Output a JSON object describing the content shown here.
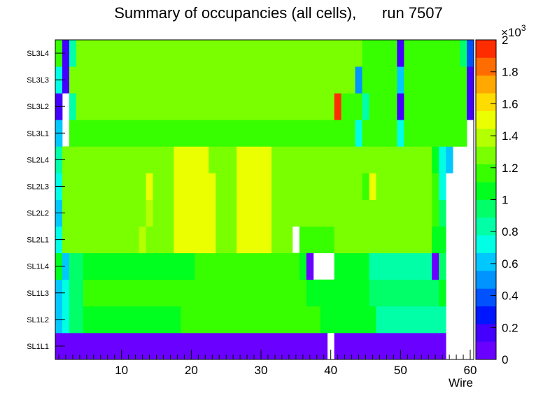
{
  "chart_data": {
    "type": "heatmap",
    "title": "Summary of occupancies (all cells),      run 7507",
    "xlabel": "Wire",
    "ylabel": "",
    "xlim": [
      0.5,
      60.5
    ],
    "x_ticks": [
      10,
      20,
      30,
      40,
      50,
      60
    ],
    "y_labels": [
      "SL1L1",
      "SL1L2",
      "SL1L3",
      "SL1L4",
      "SL2L1",
      "SL2L2",
      "SL2L3",
      "SL2L4",
      "SL3L1",
      "SL3L2",
      "SL3L3",
      "SL3L4"
    ],
    "zlim": [
      0,
      2000
    ],
    "z_exponent_label": "×10",
    "z_exponent": "3",
    "z_ticks": [
      "0",
      "0.2",
      "0.4",
      "0.6",
      "0.8",
      "1",
      "1.2",
      "1.4",
      "1.6",
      "1.8",
      "2"
    ],
    "palette": [
      "#6a00ff",
      "#4400ff",
      "#0016ff",
      "#0052ff",
      "#0094ff",
      "#00c8ff",
      "#00ffe4",
      "#00ffa6",
      "#00ff68",
      "#00ff1e",
      "#38ff00",
      "#7aff00",
      "#b4ff00",
      "#ecff00",
      "#ffdc00",
      "#ffa800",
      "#ff6c00",
      "#ff2c00"
    ],
    "rows": [
      {
        "layer": "SL1L1",
        "segments": [
          [
            1,
            39,
            0
          ],
          [
            40,
            40,
            null
          ],
          [
            41,
            56,
            0
          ],
          [
            57,
            60,
            null
          ]
        ]
      },
      {
        "layer": "SL1L2",
        "segments": [
          [
            1,
            1,
            600
          ],
          [
            2,
            2,
            720
          ],
          [
            3,
            4,
            950
          ],
          [
            5,
            18,
            1080
          ],
          [
            19,
            38,
            1120
          ],
          [
            39,
            46,
            1040
          ],
          [
            47,
            48,
            860
          ],
          [
            49,
            56,
            880
          ],
          [
            57,
            60,
            null
          ]
        ]
      },
      {
        "layer": "SL1L3",
        "segments": [
          [
            1,
            1,
            560
          ],
          [
            2,
            2,
            680
          ],
          [
            3,
            4,
            940
          ],
          [
            5,
            20,
            1150
          ],
          [
            21,
            36,
            1180
          ],
          [
            37,
            45,
            1080
          ],
          [
            46,
            55,
            900
          ],
          [
            56,
            56,
            1100
          ],
          [
            57,
            60,
            null
          ]
        ]
      },
      {
        "layer": "SL1L4",
        "segments": [
          [
            1,
            1,
            1000
          ],
          [
            2,
            2,
            580
          ],
          [
            3,
            4,
            900
          ],
          [
            5,
            20,
            1080
          ],
          [
            21,
            35,
            1120
          ],
          [
            36,
            36,
            1020
          ],
          [
            37,
            37,
            0
          ],
          [
            38,
            40,
            null
          ],
          [
            41,
            45,
            1000
          ],
          [
            46,
            54,
            880
          ],
          [
            55,
            55,
            0
          ],
          [
            56,
            56,
            940
          ],
          [
            57,
            60,
            null
          ]
        ]
      },
      {
        "layer": "SL2L1",
        "segments": [
          [
            1,
            1,
            760
          ],
          [
            2,
            8,
            1240
          ],
          [
            9,
            12,
            1300
          ],
          [
            13,
            13,
            1420
          ],
          [
            14,
            17,
            1300
          ],
          [
            18,
            23,
            1470
          ],
          [
            24,
            26,
            1300
          ],
          [
            27,
            31,
            1470
          ],
          [
            32,
            34,
            1260
          ],
          [
            35,
            35,
            null
          ],
          [
            36,
            40,
            1180
          ],
          [
            41,
            54,
            1300
          ],
          [
            55,
            55,
            1080
          ],
          [
            56,
            56,
            1000
          ],
          [
            57,
            60,
            null
          ]
        ]
      },
      {
        "layer": "SL2L2",
        "segments": [
          [
            1,
            1,
            620
          ],
          [
            2,
            8,
            1270
          ],
          [
            9,
            13,
            1310
          ],
          [
            14,
            14,
            1440
          ],
          [
            15,
            17,
            1300
          ],
          [
            18,
            23,
            1470
          ],
          [
            24,
            26,
            1300
          ],
          [
            27,
            31,
            1470
          ],
          [
            32,
            42,
            1250
          ],
          [
            43,
            54,
            1310
          ],
          [
            55,
            55,
            1150
          ],
          [
            56,
            56,
            900
          ],
          [
            57,
            60,
            null
          ]
        ]
      },
      {
        "layer": "SL2L3",
        "segments": [
          [
            1,
            1,
            720
          ],
          [
            2,
            11,
            1300
          ],
          [
            12,
            13,
            1330
          ],
          [
            14,
            14,
            1450
          ],
          [
            15,
            17,
            1320
          ],
          [
            18,
            23,
            1480
          ],
          [
            24,
            26,
            1320
          ],
          [
            27,
            31,
            1480
          ],
          [
            32,
            44,
            1260
          ],
          [
            45,
            45,
            1200
          ],
          [
            46,
            46,
            1470
          ],
          [
            47,
            54,
            1260
          ],
          [
            55,
            55,
            1150
          ],
          [
            56,
            56,
            720
          ],
          [
            57,
            60,
            null
          ]
        ]
      },
      {
        "layer": "SL2L4",
        "segments": [
          [
            1,
            1,
            880
          ],
          [
            2,
            17,
            1320
          ],
          [
            18,
            22,
            1500
          ],
          [
            23,
            26,
            1320
          ],
          [
            27,
            31,
            1500
          ],
          [
            32,
            33,
            1300
          ],
          [
            34,
            46,
            1240
          ],
          [
            47,
            54,
            1300
          ],
          [
            55,
            55,
            1080
          ],
          [
            56,
            56,
            700
          ],
          [
            57,
            57,
            640
          ],
          [
            58,
            60,
            null
          ]
        ]
      },
      {
        "layer": "SL3L1",
        "segments": [
          [
            1,
            1,
            620
          ],
          [
            2,
            2,
            null
          ],
          [
            3,
            20,
            1180
          ],
          [
            21,
            40,
            1200
          ],
          [
            41,
            43,
            1180
          ],
          [
            44,
            44,
            750
          ],
          [
            45,
            49,
            1120
          ],
          [
            50,
            50,
            760
          ],
          [
            51,
            59,
            1140
          ],
          [
            60,
            60,
            null
          ]
        ]
      },
      {
        "layer": "SL3L2",
        "segments": [
          [
            1,
            1,
            140
          ],
          [
            2,
            2,
            null
          ],
          [
            3,
            3,
            850
          ],
          [
            4,
            20,
            1230
          ],
          [
            21,
            40,
            1250
          ],
          [
            41,
            41,
            1920
          ],
          [
            42,
            44,
            1180
          ],
          [
            45,
            45,
            850
          ],
          [
            46,
            49,
            1150
          ],
          [
            50,
            50,
            200
          ],
          [
            51,
            59,
            1150
          ],
          [
            60,
            60,
            200
          ]
        ]
      },
      {
        "layer": "SL3L3",
        "segments": [
          [
            1,
            1,
            740
          ],
          [
            2,
            2,
            200
          ],
          [
            3,
            20,
            1230
          ],
          [
            21,
            43,
            1260
          ],
          [
            44,
            44,
            500
          ],
          [
            45,
            49,
            1150
          ],
          [
            50,
            50,
            650
          ],
          [
            51,
            59,
            1120
          ],
          [
            60,
            60,
            200
          ]
        ]
      },
      {
        "layer": "SL3L4",
        "segments": [
          [
            1,
            1,
            1160
          ],
          [
            2,
            2,
            120
          ],
          [
            3,
            3,
            800
          ],
          [
            4,
            20,
            1240
          ],
          [
            21,
            44,
            1280
          ],
          [
            45,
            49,
            1180
          ],
          [
            50,
            50,
            200
          ],
          [
            51,
            58,
            1120
          ],
          [
            59,
            59,
            900
          ],
          [
            60,
            60,
            400
          ]
        ]
      }
    ]
  }
}
